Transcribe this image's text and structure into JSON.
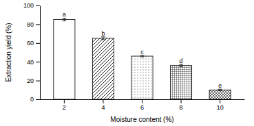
{
  "chart_data": {
    "type": "bar",
    "x_label": "Moisture content (%)",
    "y_label": "Extraction yield (%)",
    "categories": [
      "2",
      "4",
      "6",
      "8",
      "10"
    ],
    "values": [
      85,
      65,
      46,
      36,
      10
    ],
    "errors": [
      1.5,
      1.5,
      0.8,
      1.2,
      0.8
    ],
    "annotations": [
      "a",
      "b",
      "c",
      "d",
      "e"
    ],
    "ylim": [
      0,
      100
    ],
    "yticks": [
      0,
      20,
      40,
      60,
      80,
      100
    ]
  }
}
